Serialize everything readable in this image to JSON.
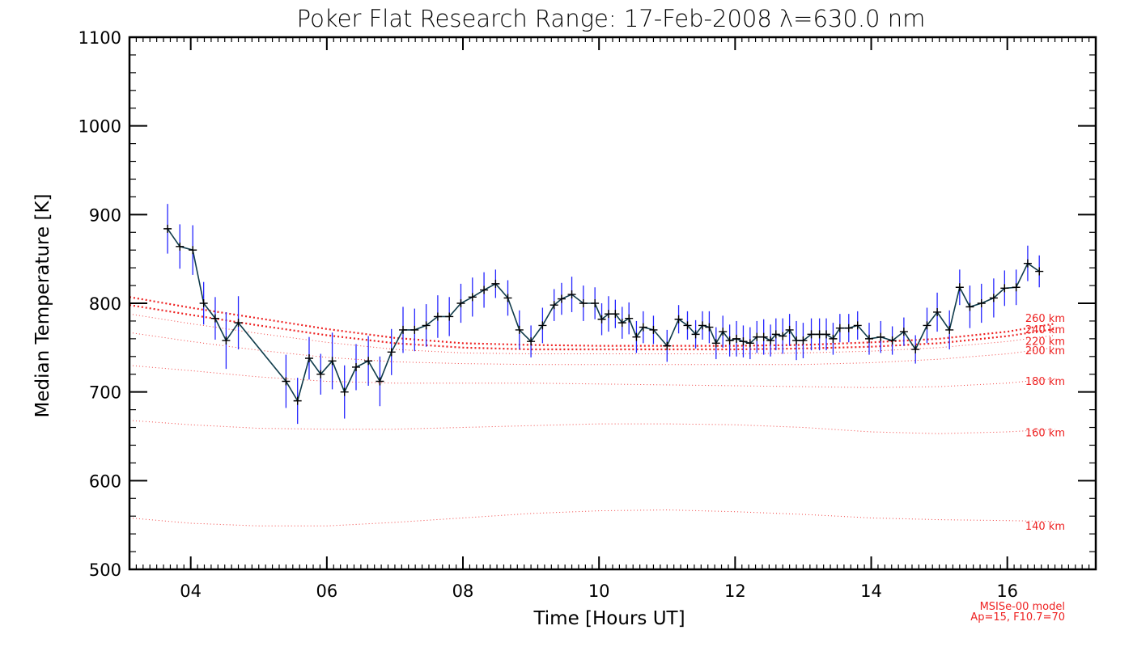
{
  "chart_data": {
    "type": "line",
    "title": "Poker Flat Research Range: 17-Feb-2008 λ=630.0 nm",
    "xlabel": "Time [Hours UT]",
    "ylabel": "Median Temperature [K]",
    "xlim": [
      3.1,
      17.3
    ],
    "ylim": [
      500,
      1100
    ],
    "x_ticks": [
      4,
      6,
      8,
      10,
      12,
      14,
      16
    ],
    "x_tick_labels": [
      "04",
      "06",
      "08",
      "10",
      "12",
      "14",
      "16"
    ],
    "y_ticks": [
      500,
      600,
      700,
      800,
      900,
      1000,
      1100
    ],
    "y_tick_labels": [
      "500",
      "600",
      "700",
      "800",
      "900",
      "1000",
      "1100"
    ],
    "grid": false,
    "colors": {
      "data_line": "#0f3b4a",
      "error_bars": "#2424ff",
      "markers": "#000000",
      "model": "#ee2222"
    },
    "series": [
      {
        "x": [
          3.66,
          3.84,
          4.03,
          4.19,
          4.36,
          4.52,
          4.7,
          5.4,
          5.57,
          5.74,
          5.91,
          6.08,
          6.26,
          6.43,
          6.61,
          6.78,
          6.95,
          7.12,
          7.29,
          7.46,
          7.63,
          7.8,
          7.97,
          8.14,
          8.31,
          8.48,
          8.66,
          8.83,
          9.0,
          9.17,
          9.34,
          9.45,
          9.6,
          9.77,
          9.94,
          10.04,
          10.14,
          10.24,
          10.34,
          10.44,
          10.55,
          10.65,
          10.8,
          11.0,
          11.17,
          11.3,
          11.42,
          11.52,
          11.62,
          11.72,
          11.82,
          11.92,
          12.02,
          12.12,
          12.22,
          12.32,
          12.42,
          12.52,
          12.6,
          12.7,
          12.8,
          12.9,
          13.0,
          13.12,
          13.24,
          13.34,
          13.44,
          13.54,
          13.67,
          13.8,
          13.97,
          14.14,
          14.31,
          14.48,
          14.65,
          14.82,
          14.97,
          15.15,
          15.3,
          15.45,
          15.62,
          15.8,
          15.96,
          16.13,
          16.3,
          16.47
        ],
        "y": [
          884,
          864,
          860,
          800,
          783,
          758,
          778,
          712,
          690,
          738,
          720,
          735,
          700,
          728,
          735,
          712,
          745,
          770,
          770,
          775,
          785,
          785,
          800,
          807,
          815,
          822,
          806,
          770,
          757,
          775,
          798,
          805,
          810,
          800,
          800,
          782,
          788,
          788,
          778,
          783,
          762,
          773,
          770,
          752,
          782,
          775,
          765,
          775,
          773,
          755,
          768,
          758,
          760,
          757,
          755,
          762,
          762,
          758,
          765,
          763,
          770,
          758,
          758,
          765,
          765,
          765,
          760,
          772,
          772,
          775,
          760,
          762,
          758,
          768,
          748,
          775,
          790,
          770,
          818,
          796,
          800,
          806,
          817,
          818,
          845,
          836
        ],
        "yerr": [
          28,
          25,
          28,
          24,
          24,
          32,
          30,
          30,
          26,
          24,
          23,
          32,
          30,
          26,
          28,
          28,
          26,
          26,
          24,
          24,
          24,
          22,
          22,
          22,
          20,
          16,
          20,
          22,
          18,
          20,
          18,
          18,
          20,
          20,
          18,
          18,
          20,
          16,
          18,
          18,
          18,
          18,
          16,
          18,
          16,
          16,
          16,
          16,
          18,
          18,
          18,
          18,
          20,
          18,
          18,
          18,
          20,
          18,
          18,
          20,
          18,
          22,
          20,
          18,
          18,
          18,
          18,
          16,
          16,
          16,
          18,
          18,
          16,
          16,
          16,
          20,
          22,
          22,
          20,
          24,
          22,
          22,
          20,
          20,
          20,
          18
        ]
      }
    ],
    "model_curves": [
      {
        "name": "140 km",
        "x": [
          3.1,
          4,
          5,
          6,
          7,
          8,
          9,
          10,
          11,
          12,
          13,
          14,
          15,
          16,
          16.7
        ],
        "y": [
          558,
          552,
          549,
          549,
          553,
          558,
          563,
          566,
          567,
          565,
          562,
          558,
          556,
          555,
          554
        ]
      },
      {
        "name": "160 km",
        "x": [
          3.1,
          4,
          5,
          6,
          7,
          8,
          9,
          10,
          11,
          12,
          13,
          14,
          15,
          16,
          16.7
        ],
        "y": [
          668,
          663,
          659,
          658,
          658,
          660,
          662,
          664,
          664,
          663,
          660,
          655,
          653,
          655,
          658
        ]
      },
      {
        "name": "180 km",
        "x": [
          3.1,
          4,
          5,
          6,
          7,
          8,
          9,
          10,
          11,
          12,
          13,
          14,
          15,
          16,
          16.7
        ],
        "y": [
          730,
          724,
          717,
          712,
          710,
          710,
          710,
          709,
          708,
          707,
          706,
          705,
          706,
          710,
          715
        ]
      },
      {
        "name": "200 km",
        "x": [
          3.1,
          4,
          5,
          6,
          7,
          8,
          9,
          10,
          11,
          12,
          13,
          14,
          15,
          16,
          16.7
        ],
        "y": [
          767,
          757,
          747,
          739,
          734,
          732,
          731,
          731,
          731,
          731,
          731,
          733,
          737,
          743,
          750
        ]
      },
      {
        "name": "220 km",
        "x": [
          3.1,
          4,
          5,
          6,
          7,
          8,
          9,
          10,
          11,
          12,
          13,
          14,
          15,
          16,
          16.7
        ],
        "y": [
          788,
          777,
          766,
          756,
          748,
          744,
          743,
          743,
          743,
          743,
          744,
          746,
          750,
          757,
          764
        ]
      },
      {
        "name": "240 km",
        "x": [
          3.1,
          4,
          5,
          6,
          7,
          8,
          9,
          10,
          11,
          12,
          13,
          14,
          15,
          16,
          16.7
        ],
        "y": [
          798,
          787,
          775,
          764,
          755,
          750,
          748,
          748,
          748,
          748,
          749,
          751,
          755,
          763,
          771
        ]
      },
      {
        "name": "260 km",
        "x": [
          3.1,
          4,
          5,
          6,
          7,
          8,
          9,
          10,
          11,
          12,
          13,
          14,
          15,
          16,
          16.7
        ],
        "y": [
          807,
          795,
          783,
          771,
          761,
          755,
          753,
          752,
          752,
          752,
          753,
          756,
          760,
          768,
          777
        ]
      }
    ],
    "model_note": [
      "MSISe-00 model",
      "Ap=15, F10.7=70"
    ]
  }
}
